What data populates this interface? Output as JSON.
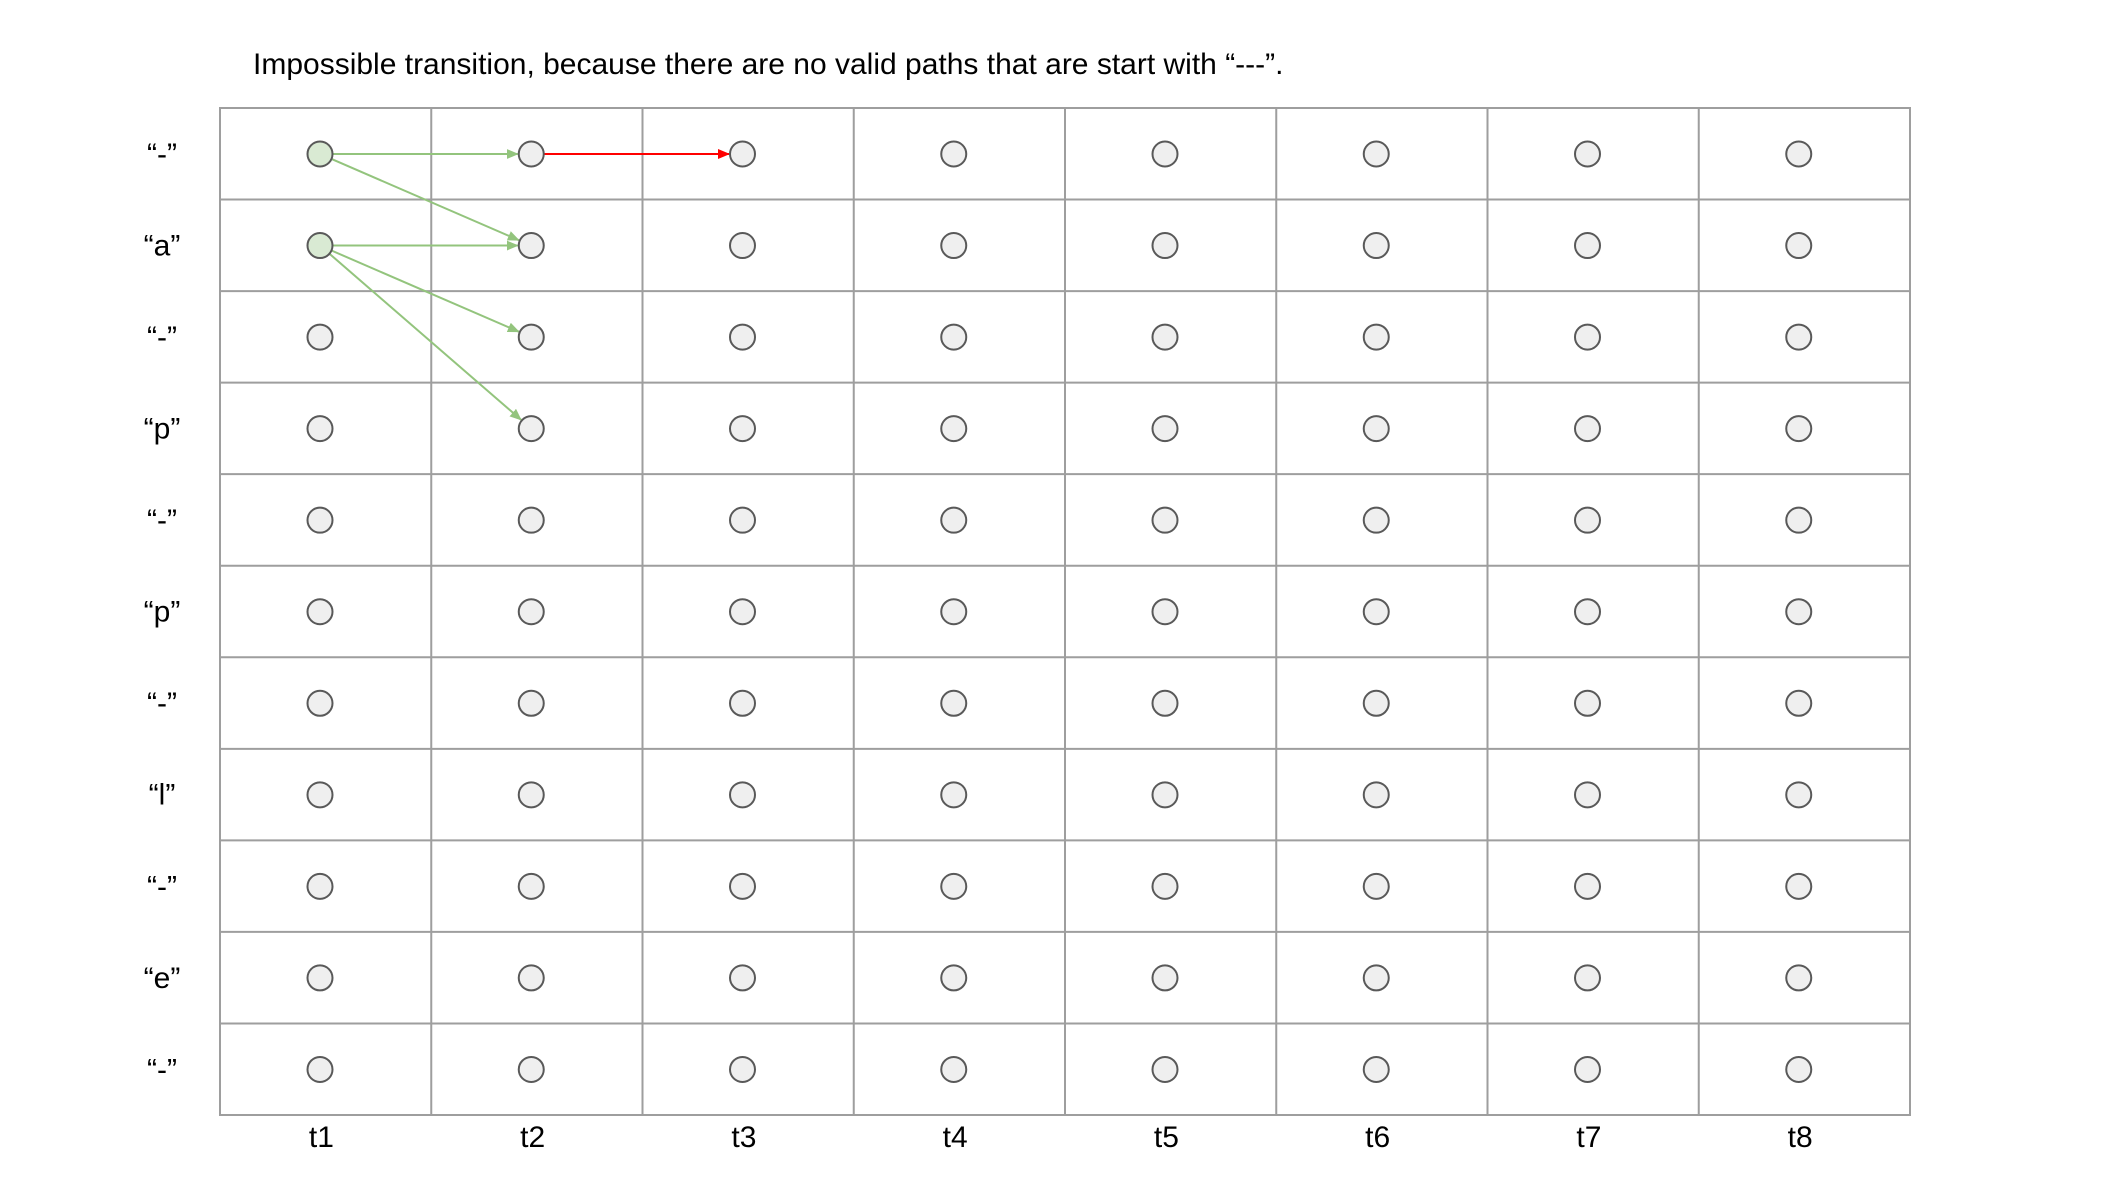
{
  "caption": "Impossible transition, because there are no valid paths that are start with “---”.",
  "row_labels": [
    "“-”",
    "“a”",
    "“-”",
    "“p”",
    "“-”",
    "“p”",
    "“-”",
    "“l”",
    "“-”",
    "“e”",
    "“-”"
  ],
  "column_labels": [
    "t1",
    "t2",
    "t3",
    "t4",
    "t5",
    "t6",
    "t7",
    "t8"
  ],
  "colors": {
    "grid": "#9e9e9e",
    "node_fill": "#efefef",
    "node_stroke": "#595959",
    "highlight_fill": "#d9ead3",
    "valid_arrow": "#93c47d",
    "invalid_arrow": "#ff0000"
  },
  "highlighted_nodes": [
    {
      "row": 0,
      "col": 0
    },
    {
      "row": 1,
      "col": 0
    }
  ],
  "transitions": [
    {
      "from": {
        "row": 0,
        "col": 0
      },
      "to": {
        "row": 0,
        "col": 1
      },
      "kind": "valid"
    },
    {
      "from": {
        "row": 0,
        "col": 0
      },
      "to": {
        "row": 1,
        "col": 1
      },
      "kind": "valid"
    },
    {
      "from": {
        "row": 1,
        "col": 0
      },
      "to": {
        "row": 1,
        "col": 1
      },
      "kind": "valid"
    },
    {
      "from": {
        "row": 1,
        "col": 0
      },
      "to": {
        "row": 2,
        "col": 1
      },
      "kind": "valid"
    },
    {
      "from": {
        "row": 1,
        "col": 0
      },
      "to": {
        "row": 3,
        "col": 1
      },
      "kind": "valid"
    },
    {
      "from": {
        "row": 0,
        "col": 1
      },
      "to": {
        "row": 0,
        "col": 2
      },
      "kind": "invalid"
    }
  ]
}
